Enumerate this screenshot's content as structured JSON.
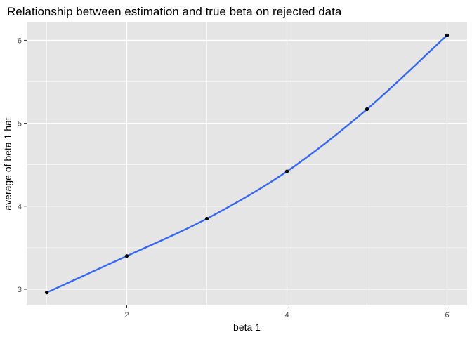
{
  "chart_data": {
    "type": "line",
    "title": "Relationship between estimation and true beta on rejected data",
    "xlabel": "beta 1",
    "ylabel": "average of beta 1 hat",
    "x": [
      1,
      2,
      3,
      4,
      5,
      6
    ],
    "series": [
      {
        "values": [
          2.96,
          3.4,
          3.85,
          4.42,
          5.17,
          6.06
        ],
        "color": "#3366FF",
        "point_color": "#000000",
        "smooth": true
      }
    ],
    "x_ticks": [
      2,
      4,
      6
    ],
    "y_ticks": [
      3,
      4,
      5,
      6
    ],
    "x_tick_labels": [
      "2",
      "4",
      "6"
    ],
    "y_tick_labels": [
      "3",
      "4",
      "5",
      "6"
    ],
    "xlim": [
      0.75,
      6.25
    ],
    "ylim": [
      2.805,
      6.215
    ],
    "grid": true,
    "panel_background": "#E5E5E5",
    "grid_color": "#FFFFFF",
    "legend": "none"
  }
}
